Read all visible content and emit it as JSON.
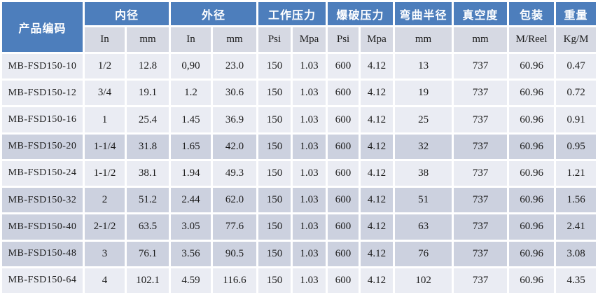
{
  "colors": {
    "header_blue": "#4d7ebc",
    "header_text": "#ffffff",
    "units_bg": "#d6d9e3",
    "row_light": "#eaecf3",
    "row_dark": "#ccd1df",
    "gap_white": "#ffffff",
    "body_text": "#1c1c1c"
  },
  "table": {
    "corner_header": "产品编码",
    "groups": [
      {
        "label": "内径"
      },
      {
        "label": "外径"
      },
      {
        "label": "工作压力"
      },
      {
        "label": "爆破压力"
      },
      {
        "label": "弯曲半径"
      },
      {
        "label": "真空度"
      },
      {
        "label": "包装"
      },
      {
        "label": "重量"
      }
    ],
    "units": [
      "In",
      "mm",
      "In",
      "mm",
      "Psi",
      "Mpa",
      "Psi",
      "Mpa",
      "mm",
      "mm",
      "M/Reel",
      "Kg/M"
    ],
    "rows": [
      {
        "code": "MB-FSD150-10",
        "shade": "light",
        "values": [
          "1/2",
          "12.8",
          "0,90",
          "23.0",
          "150",
          "1.03",
          "600",
          "4.12",
          "13",
          "737",
          "60.96",
          "0.47"
        ]
      },
      {
        "code": "MB-FSD150-12",
        "shade": "light",
        "values": [
          "3/4",
          "19.1",
          "1.2",
          "30.6",
          "150",
          "1.03",
          "600",
          "4.12",
          "19",
          "737",
          "60.96",
          "0.72"
        ]
      },
      {
        "code": "MB-FSD150-16",
        "shade": "light",
        "values": [
          "1",
          "25.4",
          "1.45",
          "36.9",
          "150",
          "1.03",
          "600",
          "4.12",
          "25",
          "737",
          "60.96",
          "0.91"
        ]
      },
      {
        "code": "MB-FSD150-20",
        "shade": "dark",
        "values": [
          "1-1/4",
          "31.8",
          "1.65",
          "42.0",
          "150",
          "1.03",
          "600",
          "4.12",
          "32",
          "737",
          "60.96",
          "0.95"
        ]
      },
      {
        "code": "MB-FSD150-24",
        "shade": "light",
        "values": [
          "1-1/2",
          "38.1",
          "1.94",
          "49.3",
          "150",
          "1.03",
          "600",
          "4.12",
          "38",
          "737",
          "60.96",
          "1.21"
        ]
      },
      {
        "code": "MB-FSD150-32",
        "shade": "dark",
        "values": [
          "2",
          "51.2",
          "2.44",
          "62.0",
          "150",
          "1.03",
          "600",
          "4.12",
          "51",
          "737",
          "60.96",
          "1.56"
        ]
      },
      {
        "code": "MB-FSD150-40",
        "shade": "dark",
        "values": [
          "2-1/2",
          "63.5",
          "3.05",
          "77.6",
          "150",
          "1.03",
          "600",
          "4.12",
          "63",
          "737",
          "60.96",
          "2.41"
        ]
      },
      {
        "code": "MB-FSD150-48",
        "shade": "dark",
        "values": [
          "3",
          "76.1",
          "3.56",
          "90.5",
          "150",
          "1.03",
          "600",
          "4.12",
          "76",
          "737",
          "60.96",
          "3.08"
        ]
      },
      {
        "code": "MB-FSD150-64",
        "shade": "light",
        "values": [
          "4",
          "102.1",
          "4.59",
          "116.6",
          "150",
          "1.03",
          "600",
          "4.12",
          "102",
          "737",
          "60.96",
          "4.35"
        ]
      }
    ]
  }
}
